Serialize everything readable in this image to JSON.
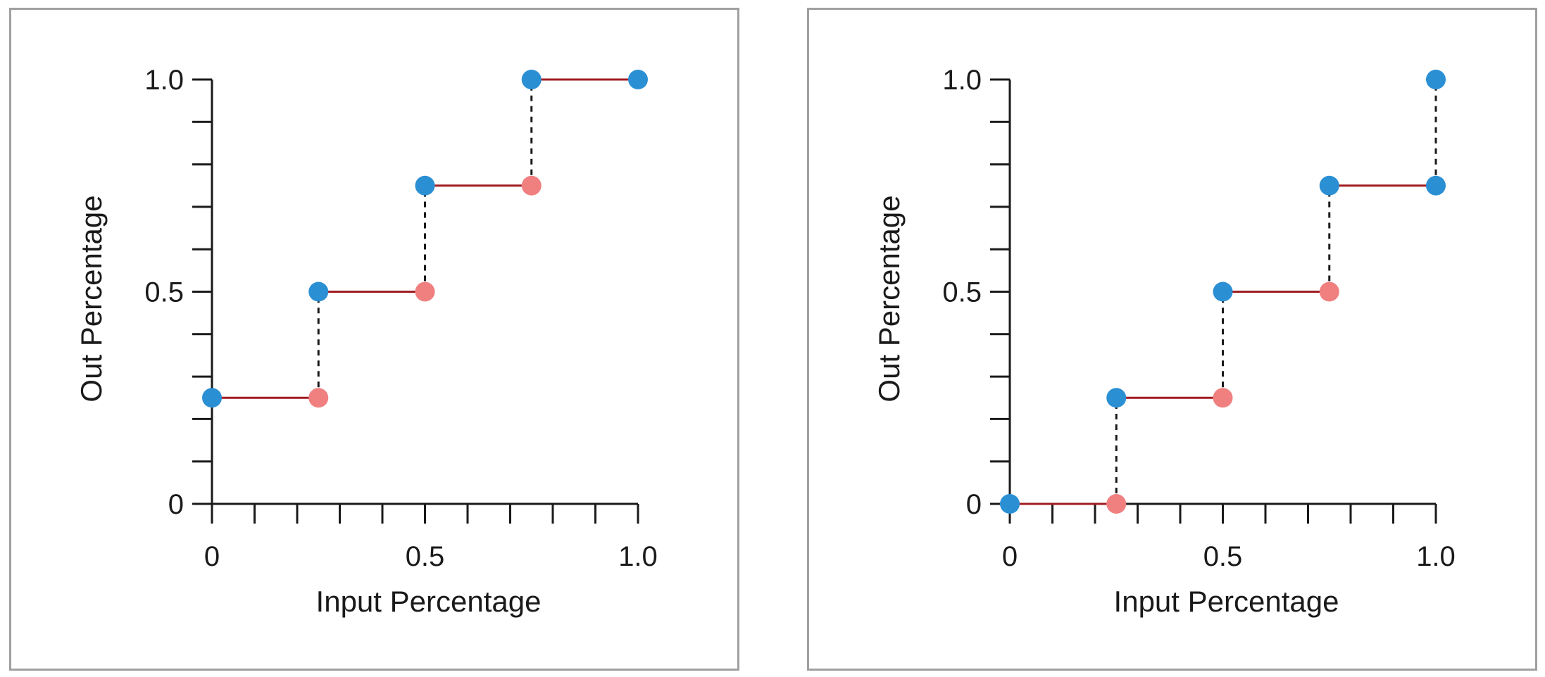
{
  "colors": {
    "step_line": "#a01c22",
    "jump_line": "#1a1a1a",
    "closed_point": "#2b8fd4",
    "open_point": "#f08080",
    "panel_border": "#a0a0a0"
  },
  "chart_data": [
    {
      "type": "line",
      "subtype": "step",
      "xlabel": "Input Percentage",
      "ylabel": "Out Percentage",
      "xlim": [
        0,
        1
      ],
      "ylim": [
        0,
        1
      ],
      "x_tick_labels": [
        {
          "value": 0,
          "label": "0"
        },
        {
          "value": 0.5,
          "label": "0.5"
        },
        {
          "value": 1,
          "label": "1.0"
        }
      ],
      "y_tick_labels": [
        {
          "value": 0,
          "label": "0"
        },
        {
          "value": 0.5,
          "label": "0.5"
        },
        {
          "value": 1,
          "label": "1.0"
        }
      ],
      "minor_tick_step": 0.1,
      "steps": [
        {
          "x0": 0,
          "x1": 0.25,
          "y": 0.25
        },
        {
          "x0": 0.25,
          "x1": 0.5,
          "y": 0.5
        },
        {
          "x0": 0.5,
          "x1": 0.75,
          "y": 0.75
        },
        {
          "x0": 0.75,
          "x1": 1.0,
          "y": 1.0
        }
      ],
      "jumps": [
        {
          "x": 0.25,
          "y0": 0.25,
          "y1": 0.5
        },
        {
          "x": 0.5,
          "y0": 0.5,
          "y1": 0.75
        },
        {
          "x": 0.75,
          "y0": 0.75,
          "y1": 1.0
        }
      ],
      "closed_points": [
        [
          0,
          0.25
        ],
        [
          0.25,
          0.5
        ],
        [
          0.5,
          0.75
        ],
        [
          0.75,
          1.0
        ],
        [
          1.0,
          1.0
        ]
      ],
      "open_points": [
        [
          0.25,
          0.25
        ],
        [
          0.5,
          0.5
        ],
        [
          0.75,
          0.75
        ]
      ],
      "grid": false
    },
    {
      "type": "line",
      "subtype": "step",
      "xlabel": "Input Percentage",
      "ylabel": "Out Percentage",
      "xlim": [
        0,
        1
      ],
      "ylim": [
        0,
        1
      ],
      "x_tick_labels": [
        {
          "value": 0,
          "label": "0"
        },
        {
          "value": 0.5,
          "label": "0.5"
        },
        {
          "value": 1,
          "label": "1.0"
        }
      ],
      "y_tick_labels": [
        {
          "value": 0,
          "label": "0"
        },
        {
          "value": 0.5,
          "label": "0.5"
        },
        {
          "value": 1,
          "label": "1.0"
        }
      ],
      "minor_tick_step": 0.1,
      "steps": [
        {
          "x0": 0,
          "x1": 0.25,
          "y": 0
        },
        {
          "x0": 0.25,
          "x1": 0.5,
          "y": 0.25
        },
        {
          "x0": 0.5,
          "x1": 0.75,
          "y": 0.5
        },
        {
          "x0": 0.75,
          "x1": 1.0,
          "y": 0.75
        }
      ],
      "jumps": [
        {
          "x": 0.25,
          "y0": 0,
          "y1": 0.25
        },
        {
          "x": 0.5,
          "y0": 0.25,
          "y1": 0.5
        },
        {
          "x": 0.75,
          "y0": 0.5,
          "y1": 0.75
        },
        {
          "x": 1.0,
          "y0": 0.75,
          "y1": 1.0
        }
      ],
      "closed_points": [
        [
          0,
          0
        ],
        [
          0.25,
          0.25
        ],
        [
          0.5,
          0.5
        ],
        [
          0.75,
          0.75
        ],
        [
          1.0,
          0.75
        ],
        [
          1.0,
          1.0
        ]
      ],
      "open_points": [
        [
          0.25,
          0
        ],
        [
          0.5,
          0.25
        ],
        [
          0.75,
          0.5
        ]
      ],
      "grid": false
    }
  ]
}
